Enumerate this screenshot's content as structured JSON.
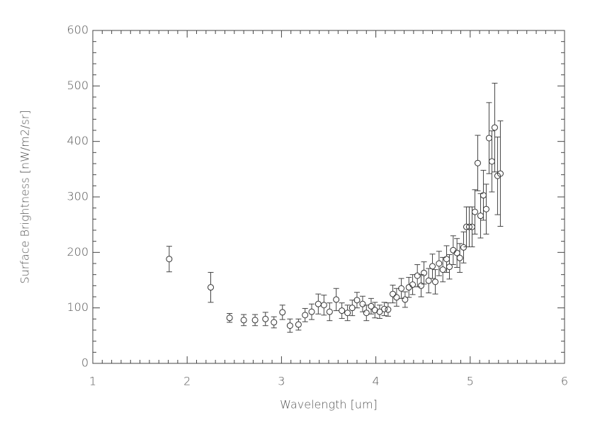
{
  "chart_data": {
    "type": "scatter",
    "x_label": "Wavelength [um]",
    "y_label": "Surface Brightness [nW/m2/sr]",
    "xlim": [
      1,
      6
    ],
    "ylim": [
      0,
      600
    ],
    "xticks": [
      1,
      2,
      3,
      4,
      5,
      6
    ],
    "yticks": [
      0,
      100,
      200,
      300,
      400,
      500,
      600
    ],
    "series": [
      {
        "color": "#333333",
        "x": [
          1.81,
          2.25,
          2.45,
          2.6,
          2.72,
          2.83,
          2.92,
          3.01,
          3.09,
          3.18,
          3.25,
          3.32,
          3.39,
          3.45,
          3.51,
          3.58,
          3.64,
          3.7,
          3.75,
          3.8,
          3.86,
          3.9,
          3.95,
          3.99,
          4.04,
          4.09,
          4.13,
          4.18,
          4.22,
          4.27,
          4.31,
          4.35,
          4.39,
          4.44,
          4.48,
          4.51,
          4.56,
          4.6,
          4.63,
          4.67,
          4.71,
          4.75,
          4.78,
          4.82,
          4.86,
          4.89,
          4.93,
          4.96,
          4.99,
          5.02,
          5.05,
          5.08,
          5.11,
          5.14,
          5.17,
          5.2,
          5.23,
          5.26,
          5.29,
          5.32
        ],
        "values": [
          188,
          137,
          82,
          78,
          78,
          80,
          74,
          92,
          68,
          70,
          87,
          93,
          107,
          105,
          93,
          115,
          95,
          91,
          100,
          114,
          107,
          91,
          103,
          96,
          93,
          98,
          97,
          125,
          119,
          135,
          115,
          137,
          142,
          158,
          140,
          163,
          149,
          175,
          147,
          180,
          169,
          188,
          174,
          204,
          199,
          190,
          209,
          246,
          246,
          246,
          273,
          361,
          266,
          303,
          278,
          406,
          364,
          425,
          338,
          342
        ],
        "errors": [
          23,
          27,
          8,
          10,
          10,
          12,
          10,
          13,
          12,
          10,
          12,
          14,
          18,
          18,
          16,
          20,
          14,
          14,
          14,
          14,
          14,
          14,
          14,
          14,
          12,
          12,
          12,
          16,
          16,
          18,
          14,
          18,
          18,
          20,
          20,
          20,
          22,
          22,
          22,
          22,
          22,
          24,
          22,
          26,
          26,
          26,
          28,
          36,
          36,
          36,
          40,
          50,
          40,
          45,
          45,
          64,
          55,
          80,
          70,
          95
        ]
      }
    ]
  }
}
